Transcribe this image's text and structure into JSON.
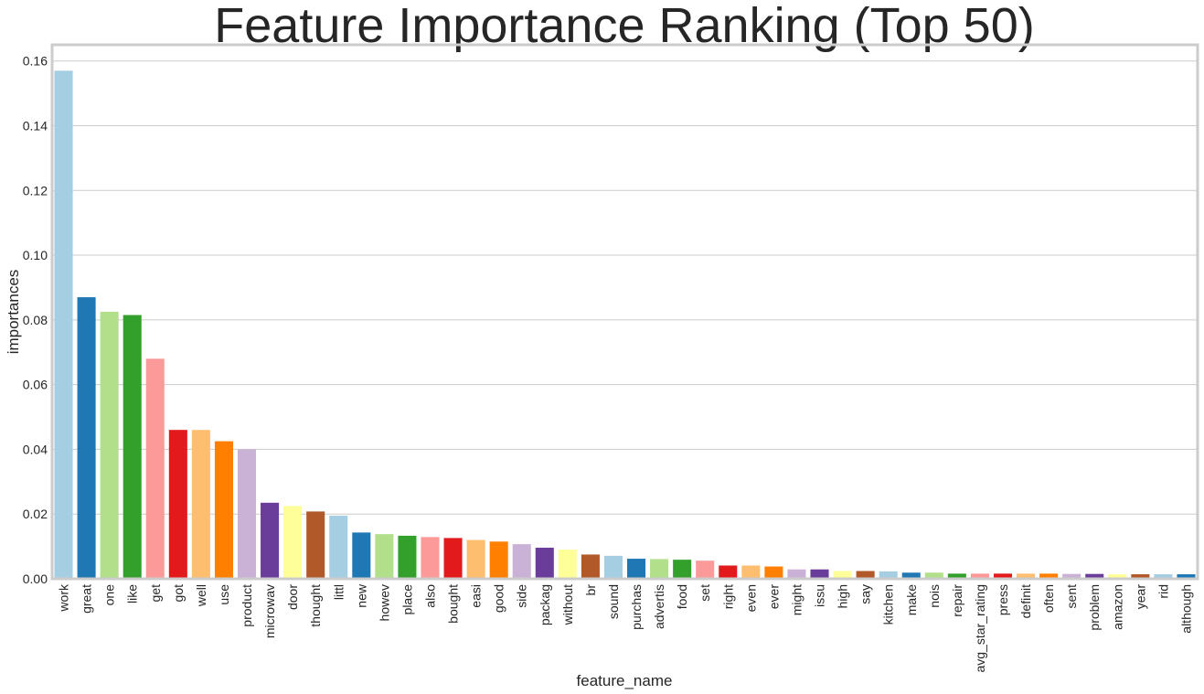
{
  "chart_data": {
    "type": "bar",
    "title": "Feature Importance Ranking (Top 50)",
    "xlabel": "feature_name",
    "ylabel": "importances",
    "ylim": [
      0,
      0.165
    ],
    "yticks": [
      "0.00",
      "0.02",
      "0.04",
      "0.06",
      "0.08",
      "0.10",
      "0.12",
      "0.14",
      "0.16"
    ],
    "grid": "horizontal",
    "categories": [
      "work",
      "great",
      "one",
      "like",
      "get",
      "got",
      "well",
      "use",
      "product",
      "microwav",
      "door",
      "thought",
      "littl",
      "new",
      "howev",
      "place",
      "also",
      "bought",
      "easi",
      "good",
      "side",
      "packag",
      "without",
      "br",
      "sound",
      "purchas",
      "advertis",
      "food",
      "set",
      "right",
      "even",
      "ever",
      "might",
      "issu",
      "high",
      "say",
      "kitchen",
      "make",
      "nois",
      "repair",
      "avg_star_rating",
      "press",
      "definit",
      "often",
      "sent",
      "problem",
      "amazon",
      "year",
      "rid",
      "although"
    ],
    "values": [
      0.157,
      0.087,
      0.0825,
      0.0815,
      0.068,
      0.046,
      0.046,
      0.0425,
      0.04,
      0.0235,
      0.0225,
      0.0208,
      0.0195,
      0.0143,
      0.0138,
      0.0133,
      0.0129,
      0.0126,
      0.012,
      0.0115,
      0.0107,
      0.0096,
      0.009,
      0.0075,
      0.0071,
      0.0062,
      0.0061,
      0.0059,
      0.0056,
      0.0041,
      0.0041,
      0.0038,
      0.0029,
      0.0029,
      0.0024,
      0.0024,
      0.0023,
      0.0019,
      0.0019,
      0.0016,
      0.0016,
      0.0016,
      0.0016,
      0.0016,
      0.0015,
      0.0015,
      0.0014,
      0.0014,
      0.0014,
      0.0014
    ],
    "colors": [
      "#a6cee3",
      "#1f78b4",
      "#b2df8a",
      "#33a02c",
      "#fb9a99",
      "#e31a1c",
      "#fdbf6f",
      "#ff7f00",
      "#cab2d6",
      "#6a3d9a",
      "#ffff99",
      "#b15928"
    ]
  }
}
